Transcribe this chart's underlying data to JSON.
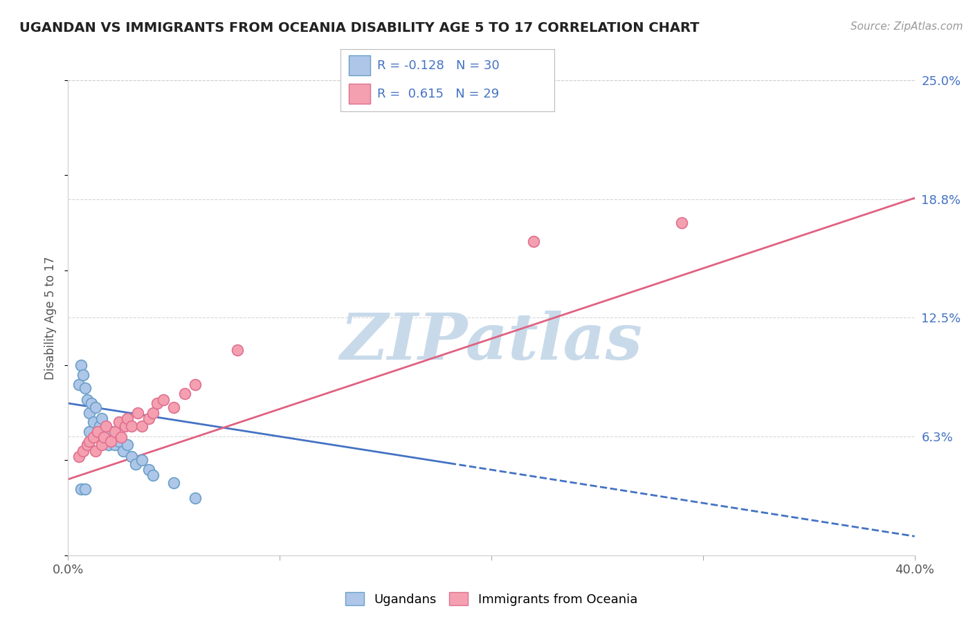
{
  "title": "UGANDAN VS IMMIGRANTS FROM OCEANIA DISABILITY AGE 5 TO 17 CORRELATION CHART",
  "source_text": "Source: ZipAtlas.com",
  "ylabel": "Disability Age 5 to 17",
  "legend_label_1": "Ugandans",
  "legend_label_2": "Immigrants from Oceania",
  "R1": -0.128,
  "N1": 30,
  "R2": 0.615,
  "N2": 29,
  "color1": "#aec6e8",
  "color1_edge": "#6a9fc8",
  "color2": "#f4a0b0",
  "color2_edge": "#e07090",
  "trend1_color": "#4472c4",
  "trend2_color": "#e06080",
  "xmin": 0.0,
  "xmax": 0.4,
  "ymin": 0.0,
  "ymax": 0.25,
  "yticks": [
    0.0,
    0.0625,
    0.125,
    0.1875,
    0.25
  ],
  "ytick_labels": [
    "",
    "6.3%",
    "12.5%",
    "18.8%",
    "25.0%"
  ],
  "xticks": [
    0.0,
    0.1,
    0.2,
    0.3,
    0.4
  ],
  "xtick_labels": [
    "0.0%",
    "",
    "",
    "",
    "40.0%"
  ],
  "scatter1_x": [
    0.005,
    0.006,
    0.007,
    0.008,
    0.009,
    0.01,
    0.01,
    0.011,
    0.012,
    0.013,
    0.014,
    0.015,
    0.016,
    0.017,
    0.018,
    0.019,
    0.02,
    0.022,
    0.024,
    0.026,
    0.028,
    0.03,
    0.032,
    0.035,
    0.038,
    0.04,
    0.05,
    0.06,
    0.006,
    0.008
  ],
  "scatter1_y": [
    0.09,
    0.1,
    0.095,
    0.088,
    0.082,
    0.075,
    0.065,
    0.08,
    0.07,
    0.078,
    0.065,
    0.068,
    0.072,
    0.06,
    0.063,
    0.058,
    0.065,
    0.058,
    0.06,
    0.055,
    0.058,
    0.052,
    0.048,
    0.05,
    0.045,
    0.042,
    0.038,
    0.03,
    0.035,
    0.035
  ],
  "scatter2_x": [
    0.005,
    0.007,
    0.009,
    0.01,
    0.012,
    0.013,
    0.014,
    0.016,
    0.017,
    0.018,
    0.02,
    0.022,
    0.024,
    0.025,
    0.027,
    0.028,
    0.03,
    0.033,
    0.035,
    0.038,
    0.04,
    0.042,
    0.045,
    0.05,
    0.055,
    0.06,
    0.08,
    0.22,
    0.29
  ],
  "scatter2_y": [
    0.052,
    0.055,
    0.058,
    0.06,
    0.062,
    0.055,
    0.065,
    0.058,
    0.062,
    0.068,
    0.06,
    0.065,
    0.07,
    0.062,
    0.068,
    0.072,
    0.068,
    0.075,
    0.068,
    0.072,
    0.075,
    0.08,
    0.082,
    0.078,
    0.085,
    0.09,
    0.108,
    0.165,
    0.175
  ],
  "trend1_x0": 0.0,
  "trend1_y0": 0.08,
  "trend1_x1": 0.4,
  "trend1_y1": 0.01,
  "trend1_solid_end": 0.18,
  "trend2_x0": 0.0,
  "trend2_y0": 0.04,
  "trend2_x1": 0.4,
  "trend2_y1": 0.188,
  "watermark_text": "ZIPatlas",
  "watermark_color": "#c8daea",
  "background_color": "#ffffff",
  "grid_color": "#cccccc",
  "title_fontsize": 14,
  "source_fontsize": 11,
  "tick_fontsize": 13,
  "ylabel_fontsize": 12
}
